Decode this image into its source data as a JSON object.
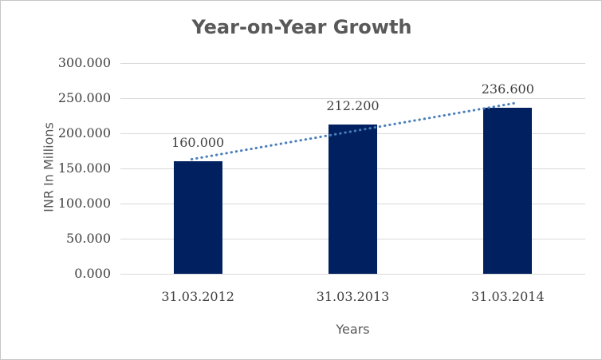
{
  "window": {
    "background": "#ffffff",
    "border_color": "#c6c6c6"
  },
  "chart_data": {
    "type": "bar",
    "title": "Year-on-Year Growth",
    "xlabel": "Years",
    "ylabel": "INR In Millions",
    "categories": [
      "31.03.2012",
      "31.03.2013",
      "31.03.2014"
    ],
    "values": [
      160.0,
      212.2,
      236.6
    ],
    "value_labels": [
      "160.000",
      "212.200",
      "236.600"
    ],
    "ylim": [
      0,
      300
    ],
    "ytick_labels": [
      "0.000",
      "50.000",
      "100.000",
      "150.000",
      "200.000",
      "250.000",
      "300.000"
    ],
    "grid": true,
    "legend": false,
    "trendline": true,
    "colors": {
      "bar": "#002060",
      "trendline": "#4a7ebb",
      "gridline": "#d9d9d9",
      "title": "#595959",
      "axis_title": "#595959",
      "tick": "#404040"
    }
  }
}
